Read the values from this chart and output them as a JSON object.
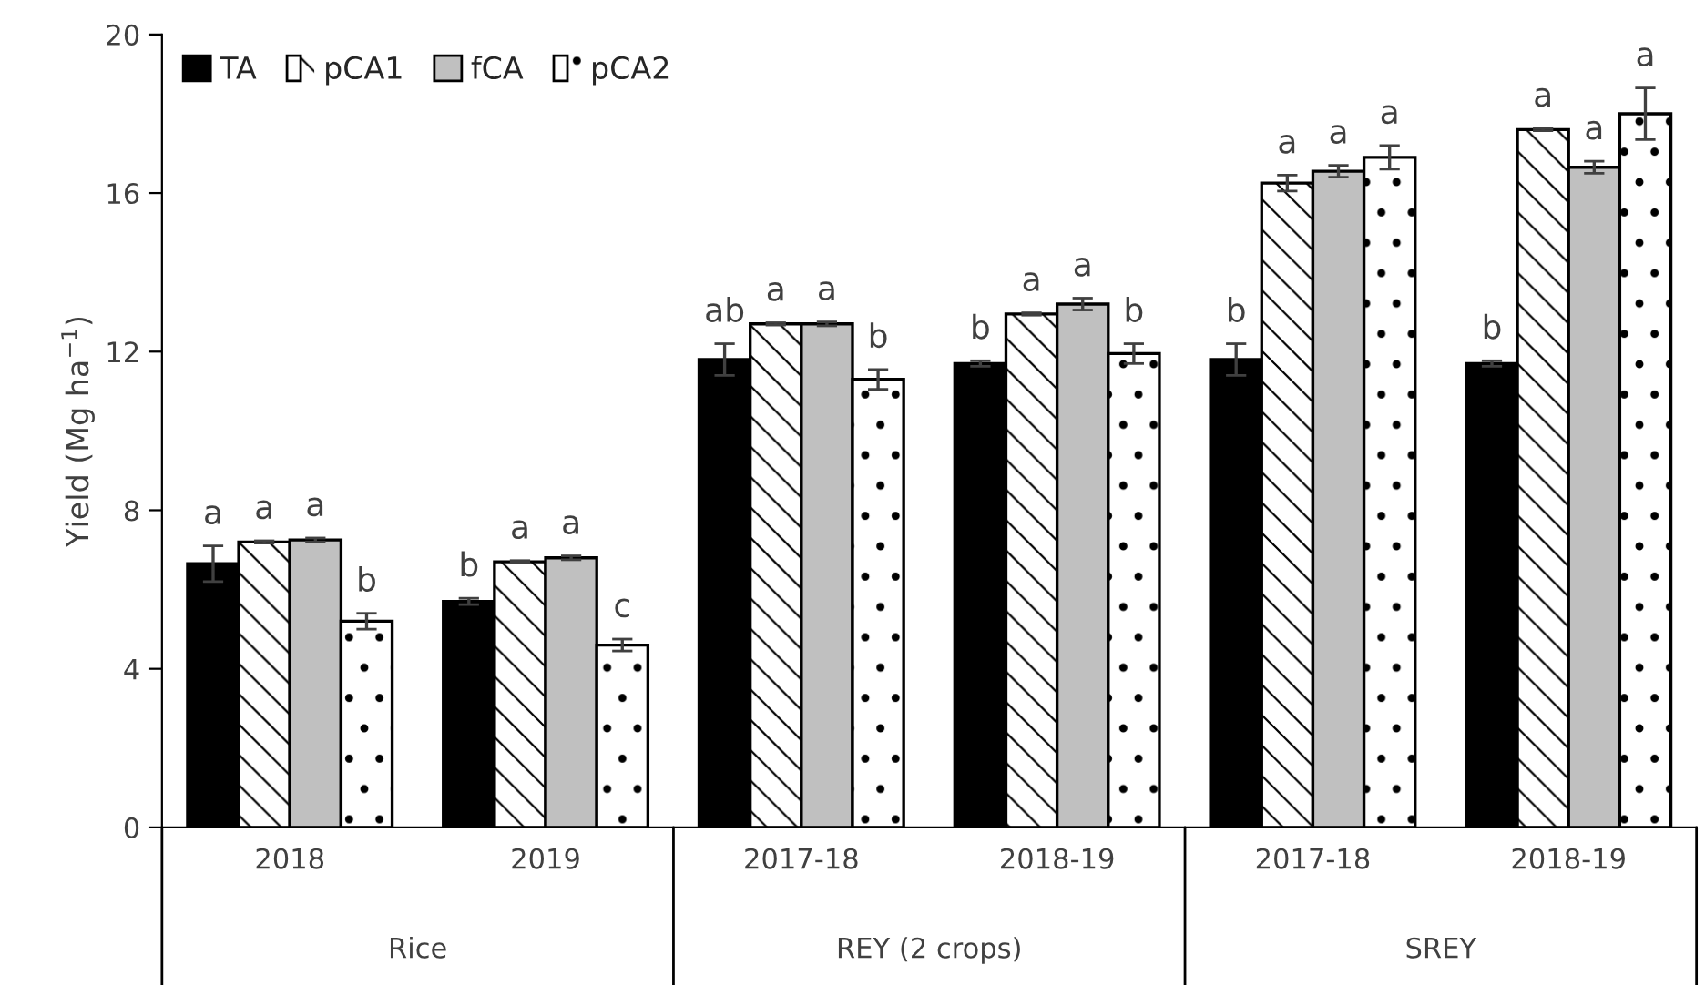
{
  "chart_data": {
    "type": "bar",
    "ylabel": "Yield (Mg ha$^{−1}$)",
    "categories": [
      "2018",
      "2019",
      "2017-18",
      "2018-19",
      "2017-18",
      "2018-19"
    ],
    "annotations": [
      "Rice",
      "REY (2 crops)",
      "SREY"
    ],
    "ylim": [
      0,
      20
    ],
    "yticks": [
      0,
      4,
      8,
      12,
      16,
      20
    ],
    "grid": false,
    "legend": "top left",
    "series": [
      {
        "name": "TA",
        "color": "#000000",
        "values": [
          6.65,
          5.7,
          11.8,
          11.7,
          11.8,
          11.7
        ],
        "errors": [
          0.45,
          0.08,
          0.4,
          0.07,
          0.4,
          0.07
        ],
        "value_labels": [
          "a",
          "b",
          "ab",
          "b",
          "b",
          "b"
        ]
      },
      {
        "name": "pCA1",
        "color": "#ffffff",
        "values": [
          7.2,
          6.7,
          12.7,
          12.95,
          16.25,
          17.6
        ],
        "errors": [
          0.03,
          0.03,
          0.03,
          0.03,
          0.2,
          0.03
        ],
        "value_labels": [
          "a",
          "a",
          "a",
          "a",
          "a",
          "a"
        ]
      },
      {
        "name": "fCA",
        "color": "#c0c0c0",
        "values": [
          7.25,
          6.8,
          12.7,
          13.2,
          16.55,
          16.65
        ],
        "errors": [
          0.05,
          0.05,
          0.05,
          0.15,
          0.15,
          0.15
        ],
        "value_labels": [
          "a",
          "a",
          "a",
          "a",
          "a",
          "a"
        ]
      },
      {
        "name": "pCA2",
        "color": "#ffffff",
        "values": [
          5.2,
          4.6,
          11.3,
          11.95,
          16.9,
          18.0
        ],
        "errors": [
          0.2,
          0.15,
          0.25,
          0.25,
          0.3,
          0.65
        ],
        "value_labels": [
          "b",
          "c",
          "b",
          "b",
          "a",
          "a"
        ]
      }
    ]
  }
}
